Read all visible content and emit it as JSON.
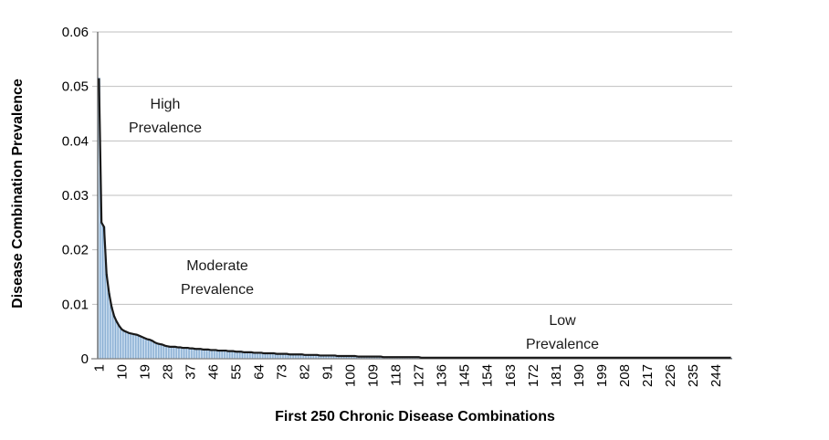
{
  "figure": {
    "x_axis_title": "First 250 Chronic Disease Combinations",
    "y_axis_title": "Disease Combination Prevalence",
    "annotations": {
      "high": {
        "line1": "High",
        "line2": "Prevalence"
      },
      "moderate": {
        "line1": "Moderate",
        "line2": "Prevalence"
      },
      "low": {
        "line1": "Low",
        "line2": "Prevalence"
      }
    }
  },
  "chart_data": {
    "type": "bar",
    "overlay": "line",
    "title": "",
    "xlabel": "First 250 Chronic Disease Combinations",
    "ylabel": "Disease Combination Prevalence",
    "x_range": [
      1,
      250
    ],
    "ylim": [
      0,
      0.06
    ],
    "grid": true,
    "y_ticks": [
      0,
      0.01,
      0.02,
      0.03,
      0.04,
      0.05,
      0.06
    ],
    "y_tick_labels": [
      "0",
      "0.01",
      "0.02",
      "0.03",
      "0.04",
      "0.05",
      "0.06"
    ],
    "x_tick_labels": [
      "1",
      "10",
      "19",
      "28",
      "37",
      "46",
      "55",
      "64",
      "73",
      "82",
      "91",
      "100",
      "109",
      "118",
      "127",
      "136",
      "145",
      "154",
      "163",
      "172",
      "181",
      "190",
      "199",
      "208",
      "217",
      "226",
      "235",
      "244"
    ],
    "x_tick_step": 9,
    "colors": {
      "bar_fill": "#cfe0f1",
      "bar_border": "#88aed3",
      "line": "#1a1a1a",
      "gridline": "#bfbfbf",
      "axis": "#7f7f7f",
      "background": "#ffffff"
    },
    "annotations": [
      "High Prevalence",
      "Moderate Prevalence",
      "Low Prevalence"
    ],
    "values": [
      0.0515,
      0.025,
      0.0242,
      0.0155,
      0.012,
      0.0095,
      0.0078,
      0.0068,
      0.006,
      0.0054,
      0.0051,
      0.0049,
      0.0047,
      0.0046,
      0.0045,
      0.0044,
      0.0042,
      0.004,
      0.0038,
      0.0036,
      0.0035,
      0.0033,
      0.003,
      0.0028,
      0.0027,
      0.0026,
      0.0024,
      0.0023,
      0.0022,
      0.0022,
      0.0022,
      0.0021,
      0.0021,
      0.002,
      0.002,
      0.002,
      0.0019,
      0.0019,
      0.0018,
      0.0018,
      0.0018,
      0.0017,
      0.0017,
      0.0017,
      0.0016,
      0.0016,
      0.0016,
      0.0015,
      0.0015,
      0.0015,
      0.0015,
      0.0014,
      0.0014,
      0.0014,
      0.0013,
      0.0013,
      0.0013,
      0.0012,
      0.0012,
      0.0012,
      0.0012,
      0.0011,
      0.0011,
      0.0011,
      0.0011,
      0.001,
      0.001,
      0.001,
      0.001,
      0.001,
      0.0009,
      0.0009,
      0.0009,
      0.0009,
      0.0009,
      0.0008,
      0.0008,
      0.0008,
      0.0008,
      0.0008,
      0.0008,
      0.0007,
      0.0007,
      0.0007,
      0.0007,
      0.0007,
      0.0007,
      0.0006,
      0.0006,
      0.0006,
      0.0006,
      0.0006,
      0.0006,
      0.0006,
      0.0005,
      0.0005,
      0.0005,
      0.0005,
      0.0005,
      0.0005,
      0.0005,
      0.0005,
      0.0004,
      0.0004,
      0.0004,
      0.0004,
      0.0004,
      0.0004,
      0.0004,
      0.0004,
      0.0004,
      0.0004,
      0.0003,
      0.0003,
      0.0003,
      0.0003,
      0.0003,
      0.0003,
      0.0003,
      0.0003,
      0.0003,
      0.0003,
      0.0003,
      0.0003,
      0.0003,
      0.0003,
      0.0003,
      0.0002,
      0.0002,
      0.0002,
      0.0002,
      0.0002,
      0.0002,
      0.0002,
      0.0002,
      0.0002,
      0.0002,
      0.0002,
      0.0002,
      0.0002,
      0.0002,
      0.0002,
      0.0002,
      0.0002,
      0.0002,
      0.0002,
      0.0002,
      0.0002,
      0.0002,
      0.0002,
      0.0002,
      0.0002,
      0.0002,
      0.0002,
      0.0002,
      0.0002,
      0.0002,
      0.0002,
      0.00015,
      0.00015,
      0.00015,
      0.00015,
      0.00015,
      0.00015,
      0.00015,
      0.00015,
      0.00015,
      0.00015,
      0.00015,
      0.00015,
      0.00015,
      0.00015,
      0.00015,
      0.00015,
      0.00015,
      0.00015,
      0.00015,
      0.00015,
      0.00015,
      0.00015,
      0.00015,
      0.00015,
      0.00015,
      0.00015,
      0.00015,
      0.00015,
      0.00015,
      0.00015,
      0.00015,
      0.00015,
      0.00015,
      0.00015,
      0.00015,
      0.00015,
      0.00015,
      0.00015,
      0.00015,
      0.00015,
      0.00015,
      0.00015,
      0.0001,
      0.0001,
      0.0001,
      0.0001,
      0.0001,
      0.0001,
      0.0001,
      0.0001,
      0.0001,
      0.0001,
      0.0001,
      0.0001,
      0.0001,
      0.0001,
      0.0001,
      0.0001,
      0.0001,
      0.0001,
      0.0001,
      0.0001,
      0.0001,
      0.0001,
      0.0001,
      0.0001,
      0.0001,
      0.0001,
      0.0001,
      0.0001,
      0.0001,
      0.0001,
      0.0001,
      0.0001,
      0.0001,
      0.0001,
      0.0001,
      0.0001,
      0.0001,
      0.0001,
      0.0001,
      0.0001,
      0.0001,
      0.0001,
      0.0001,
      0.0001,
      0.0001,
      0.0001,
      0.0001,
      0.0001,
      0.0001,
      0.0001
    ]
  }
}
